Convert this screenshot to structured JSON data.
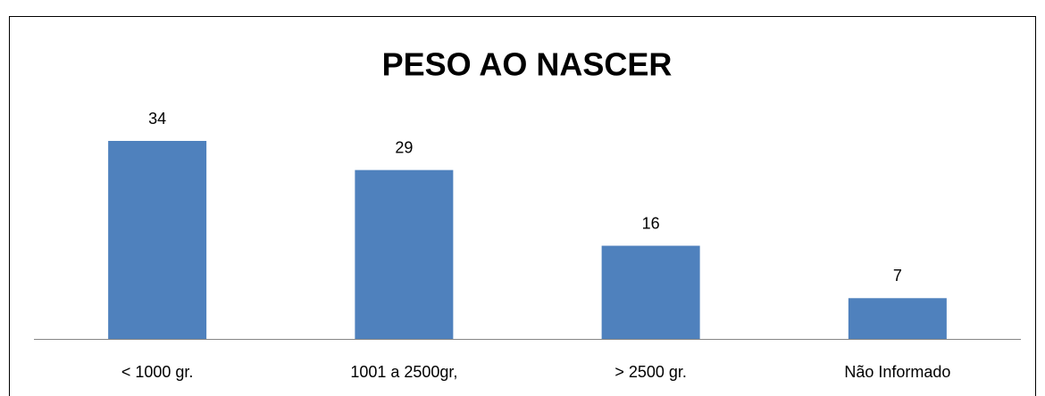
{
  "chart_data": {
    "type": "bar",
    "title": "PESO AO NASCER",
    "categories": [
      "< 1000 gr.",
      "1001 a 2500gr,",
      "> 2500 gr.",
      "Não Informado"
    ],
    "values": [
      34,
      29,
      16,
      7
    ],
    "color": "#4f81bd"
  }
}
